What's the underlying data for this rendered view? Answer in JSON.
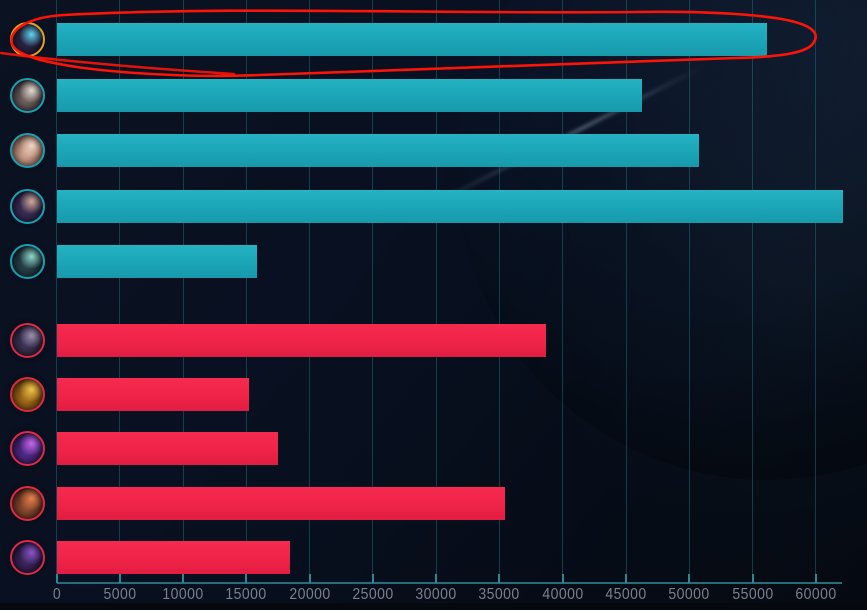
{
  "app": {
    "background_color": "#081021",
    "ally_bar_color": "#1aa4b6",
    "enemy_bar_color": "#ee2347",
    "gridline_color": "#26707c",
    "axis_color": "#256d79",
    "tick_label_color": "#79818b"
  },
  "chart_data": {
    "type": "bar",
    "orientation": "horizontal",
    "title": "",
    "xlabel": "",
    "ylabel": "",
    "grid": true,
    "legend": null,
    "x_axis": {
      "ticks": [
        0,
        5000,
        10000,
        15000,
        20000,
        25000,
        30000,
        35000,
        40000,
        45000,
        50000,
        55000,
        60000
      ],
      "tick_labels": [
        "0",
        "5000",
        "10000",
        "15000",
        "20000",
        "25000",
        "30000",
        "35000",
        "40000",
        "45000",
        "50000",
        "55000",
        "60000"
      ],
      "axis_drawn_to_value": 62100
    },
    "categories": [
      "player-1",
      "player-2",
      "player-3",
      "player-4",
      "player-5",
      "player-6",
      "player-7",
      "player-8",
      "player-9",
      "player-10"
    ],
    "series": [
      {
        "name": "damage-dealt",
        "values": [
          56100,
          46200,
          50700,
          62100,
          15800,
          38600,
          15200,
          17500,
          35400,
          18400
        ]
      }
    ],
    "rows": [
      {
        "id": "player-1",
        "team": "ally",
        "value": 56100,
        "highlighted": true,
        "avatar": {
          "base": "#2a2140",
          "shade": "#141022",
          "highlight": "#5fd4f0",
          "ring": "#e2a31c"
        }
      },
      {
        "id": "player-2",
        "team": "ally",
        "value": 46200,
        "highlighted": false,
        "avatar": {
          "base": "#6e5f5c",
          "shade": "#241d26",
          "highlight": "#e5dcd2",
          "ring": "#17a2b4"
        }
      },
      {
        "id": "player-3",
        "team": "ally",
        "value": 50700,
        "highlighted": false,
        "avatar": {
          "base": "#caa08b",
          "shade": "#57342f",
          "highlight": "#f2d9c4",
          "ring": "#17a2b4"
        }
      },
      {
        "id": "player-4",
        "team": "ally",
        "value": 62100,
        "highlighted": false,
        "avatar": {
          "base": "#3a2c55",
          "shade": "#171130",
          "highlight": "#d3aa96",
          "ring": "#17a2b4"
        }
      },
      {
        "id": "player-5",
        "team": "ally",
        "value": 15800,
        "highlighted": false,
        "avatar": {
          "base": "#27414a",
          "shade": "#0e1a20",
          "highlight": "#8fd8cc",
          "ring": "#17a2b4"
        }
      },
      {
        "id": "player-6",
        "team": "enemy",
        "value": 38600,
        "highlighted": false,
        "avatar": {
          "base": "#3c3352",
          "shade": "#171224",
          "highlight": "#9c90b0",
          "ring": "#e02944"
        }
      },
      {
        "id": "player-7",
        "team": "enemy",
        "value": 15200,
        "highlighted": false,
        "avatar": {
          "base": "#a06a1a",
          "shade": "#3f2706",
          "highlight": "#f3c64a",
          "ring": "#e02944"
        }
      },
      {
        "id": "player-8",
        "team": "enemy",
        "value": 17500,
        "highlighted": false,
        "avatar": {
          "base": "#4f2a86",
          "shade": "#1c0e38",
          "highlight": "#c767ec",
          "ring": "#e02944"
        }
      },
      {
        "id": "player-9",
        "team": "enemy",
        "value": 35400,
        "highlighted": false,
        "avatar": {
          "base": "#8a4a30",
          "shade": "#33150f",
          "highlight": "#e8834a",
          "ring": "#e02944"
        }
      },
      {
        "id": "player-10",
        "team": "enemy",
        "value": 18400,
        "highlighted": false,
        "avatar": {
          "base": "#3a2558",
          "shade": "#140b26",
          "highlight": "#8a55cc",
          "ring": "#e02944"
        }
      }
    ],
    "annotation": {
      "shape": "hand-drawn-ellipse",
      "around": "player-1 row",
      "color": "#fb1407",
      "highlight_ring_color": "#e2a31c"
    }
  }
}
